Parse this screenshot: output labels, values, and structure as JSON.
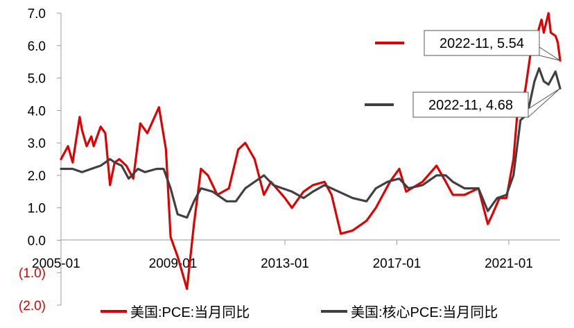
{
  "chart_data": {
    "type": "line",
    "title": "",
    "xlabel": "",
    "ylabel": "",
    "x_range": [
      "2005-01",
      "2022-11"
    ],
    "ylim": [
      -2.0,
      7.0
    ],
    "yticks": [
      {
        "value": 7.0,
        "label": "7.0"
      },
      {
        "value": 6.0,
        "label": "6.0"
      },
      {
        "value": 5.0,
        "label": "5.0"
      },
      {
        "value": 4.0,
        "label": "4.0"
      },
      {
        "value": 3.0,
        "label": "3.0"
      },
      {
        "value": 2.0,
        "label": "2.0"
      },
      {
        "value": 1.0,
        "label": "1.0"
      },
      {
        "value": 0.0,
        "label": "0.0"
      },
      {
        "value": -1.0,
        "label": "(1.0)"
      },
      {
        "value": -2.0,
        "label": "(2.0)"
      }
    ],
    "xticks": [
      "2005-01",
      "2009-01",
      "2013-01",
      "2017-01",
      "2021-01"
    ],
    "grid": false,
    "legend_position": "bottom",
    "series": [
      {
        "name": "美国:PCE:当月同比",
        "color": "#e00000",
        "points": [
          [
            "2005-01",
            2.5
          ],
          [
            "2005-04",
            2.9
          ],
          [
            "2005-06",
            2.4
          ],
          [
            "2005-09",
            3.8
          ],
          [
            "2005-10",
            3.4
          ],
          [
            "2005-12",
            2.9
          ],
          [
            "2006-02",
            3.2
          ],
          [
            "2006-03",
            2.9
          ],
          [
            "2006-06",
            3.5
          ],
          [
            "2006-08",
            3.3
          ],
          [
            "2006-10",
            1.7
          ],
          [
            "2006-12",
            2.4
          ],
          [
            "2007-02",
            2.5
          ],
          [
            "2007-05",
            2.3
          ],
          [
            "2007-08",
            1.9
          ],
          [
            "2007-11",
            3.6
          ],
          [
            "2008-02",
            3.3
          ],
          [
            "2008-07",
            4.1
          ],
          [
            "2008-10",
            2.8
          ],
          [
            "2008-12",
            0.1
          ],
          [
            "2009-03",
            -0.5
          ],
          [
            "2009-07",
            -1.5
          ],
          [
            "2009-10",
            0.5
          ],
          [
            "2010-01",
            2.2
          ],
          [
            "2010-04",
            2.0
          ],
          [
            "2010-08",
            1.4
          ],
          [
            "2011-01",
            1.6
          ],
          [
            "2011-05",
            2.8
          ],
          [
            "2011-08",
            3.0
          ],
          [
            "2011-12",
            2.5
          ],
          [
            "2012-04",
            1.4
          ],
          [
            "2012-07",
            1.8
          ],
          [
            "2013-01",
            1.3
          ],
          [
            "2013-04",
            1.0
          ],
          [
            "2013-09",
            1.5
          ],
          [
            "2014-01",
            1.7
          ],
          [
            "2014-06",
            1.8
          ],
          [
            "2014-09",
            1.4
          ],
          [
            "2015-01",
            0.2
          ],
          [
            "2015-06",
            0.3
          ],
          [
            "2015-12",
            0.6
          ],
          [
            "2016-04",
            1.0
          ],
          [
            "2016-10",
            1.8
          ],
          [
            "2017-02",
            2.2
          ],
          [
            "2017-05",
            1.5
          ],
          [
            "2017-12",
            1.8
          ],
          [
            "2018-06",
            2.3
          ],
          [
            "2018-10",
            1.8
          ],
          [
            "2019-01",
            1.4
          ],
          [
            "2019-06",
            1.4
          ],
          [
            "2019-12",
            1.6
          ],
          [
            "2020-04",
            0.5
          ],
          [
            "2020-06",
            0.8
          ],
          [
            "2020-09",
            1.3
          ],
          [
            "2020-12",
            1.3
          ],
          [
            "2021-03",
            2.5
          ],
          [
            "2021-05",
            4.2
          ],
          [
            "2021-08",
            4.6
          ],
          [
            "2021-11",
            6.1
          ],
          [
            "2022-01",
            6.3
          ],
          [
            "2022-03",
            6.8
          ],
          [
            "2022-04",
            6.4
          ],
          [
            "2022-06",
            7.0
          ],
          [
            "2022-07",
            6.4
          ],
          [
            "2022-09",
            6.3
          ],
          [
            "2022-10",
            6.1
          ],
          [
            "2022-11",
            5.54
          ]
        ]
      },
      {
        "name": "美国:核心PCE:当月同比",
        "color": "#404040",
        "points": [
          [
            "2005-01",
            2.2
          ],
          [
            "2005-06",
            2.2
          ],
          [
            "2005-10",
            2.1
          ],
          [
            "2006-02",
            2.2
          ],
          [
            "2006-06",
            2.3
          ],
          [
            "2006-10",
            2.5
          ],
          [
            "2006-12",
            2.4
          ],
          [
            "2007-03",
            2.3
          ],
          [
            "2007-06",
            1.9
          ],
          [
            "2007-10",
            2.2
          ],
          [
            "2008-01",
            2.1
          ],
          [
            "2008-06",
            2.2
          ],
          [
            "2008-09",
            2.2
          ],
          [
            "2008-12",
            1.6
          ],
          [
            "2009-03",
            0.8
          ],
          [
            "2009-07",
            0.7
          ],
          [
            "2009-10",
            1.2
          ],
          [
            "2010-01",
            1.6
          ],
          [
            "2010-06",
            1.5
          ],
          [
            "2010-12",
            1.2
          ],
          [
            "2011-04",
            1.2
          ],
          [
            "2011-08",
            1.6
          ],
          [
            "2011-12",
            1.8
          ],
          [
            "2012-04",
            2.0
          ],
          [
            "2012-08",
            1.7
          ],
          [
            "2012-12",
            1.6
          ],
          [
            "2013-04",
            1.5
          ],
          [
            "2013-09",
            1.3
          ],
          [
            "2014-01",
            1.5
          ],
          [
            "2014-06",
            1.7
          ],
          [
            "2014-12",
            1.5
          ],
          [
            "2015-06",
            1.3
          ],
          [
            "2015-12",
            1.2
          ],
          [
            "2016-04",
            1.6
          ],
          [
            "2016-09",
            1.8
          ],
          [
            "2017-02",
            1.9
          ],
          [
            "2017-06",
            1.6
          ],
          [
            "2017-12",
            1.7
          ],
          [
            "2018-06",
            2.0
          ],
          [
            "2018-10",
            2.0
          ],
          [
            "2019-01",
            1.8
          ],
          [
            "2019-06",
            1.6
          ],
          [
            "2019-12",
            1.6
          ],
          [
            "2020-04",
            0.9
          ],
          [
            "2020-08",
            1.3
          ],
          [
            "2020-12",
            1.4
          ],
          [
            "2021-03",
            2.0
          ],
          [
            "2021-06",
            3.7
          ],
          [
            "2021-09",
            3.9
          ],
          [
            "2021-12",
            4.9
          ],
          [
            "2022-02",
            5.3
          ],
          [
            "2022-04",
            4.9
          ],
          [
            "2022-06",
            4.8
          ],
          [
            "2022-09",
            5.2
          ],
          [
            "2022-11",
            4.68
          ]
        ]
      }
    ],
    "annotations": [
      {
        "series": 0,
        "x": "2022-11",
        "y": 5.54,
        "text": "2022-11, 5.54"
      },
      {
        "series": 1,
        "x": "2022-11",
        "y": 4.68,
        "text": "2022-11, 4.68"
      }
    ]
  }
}
